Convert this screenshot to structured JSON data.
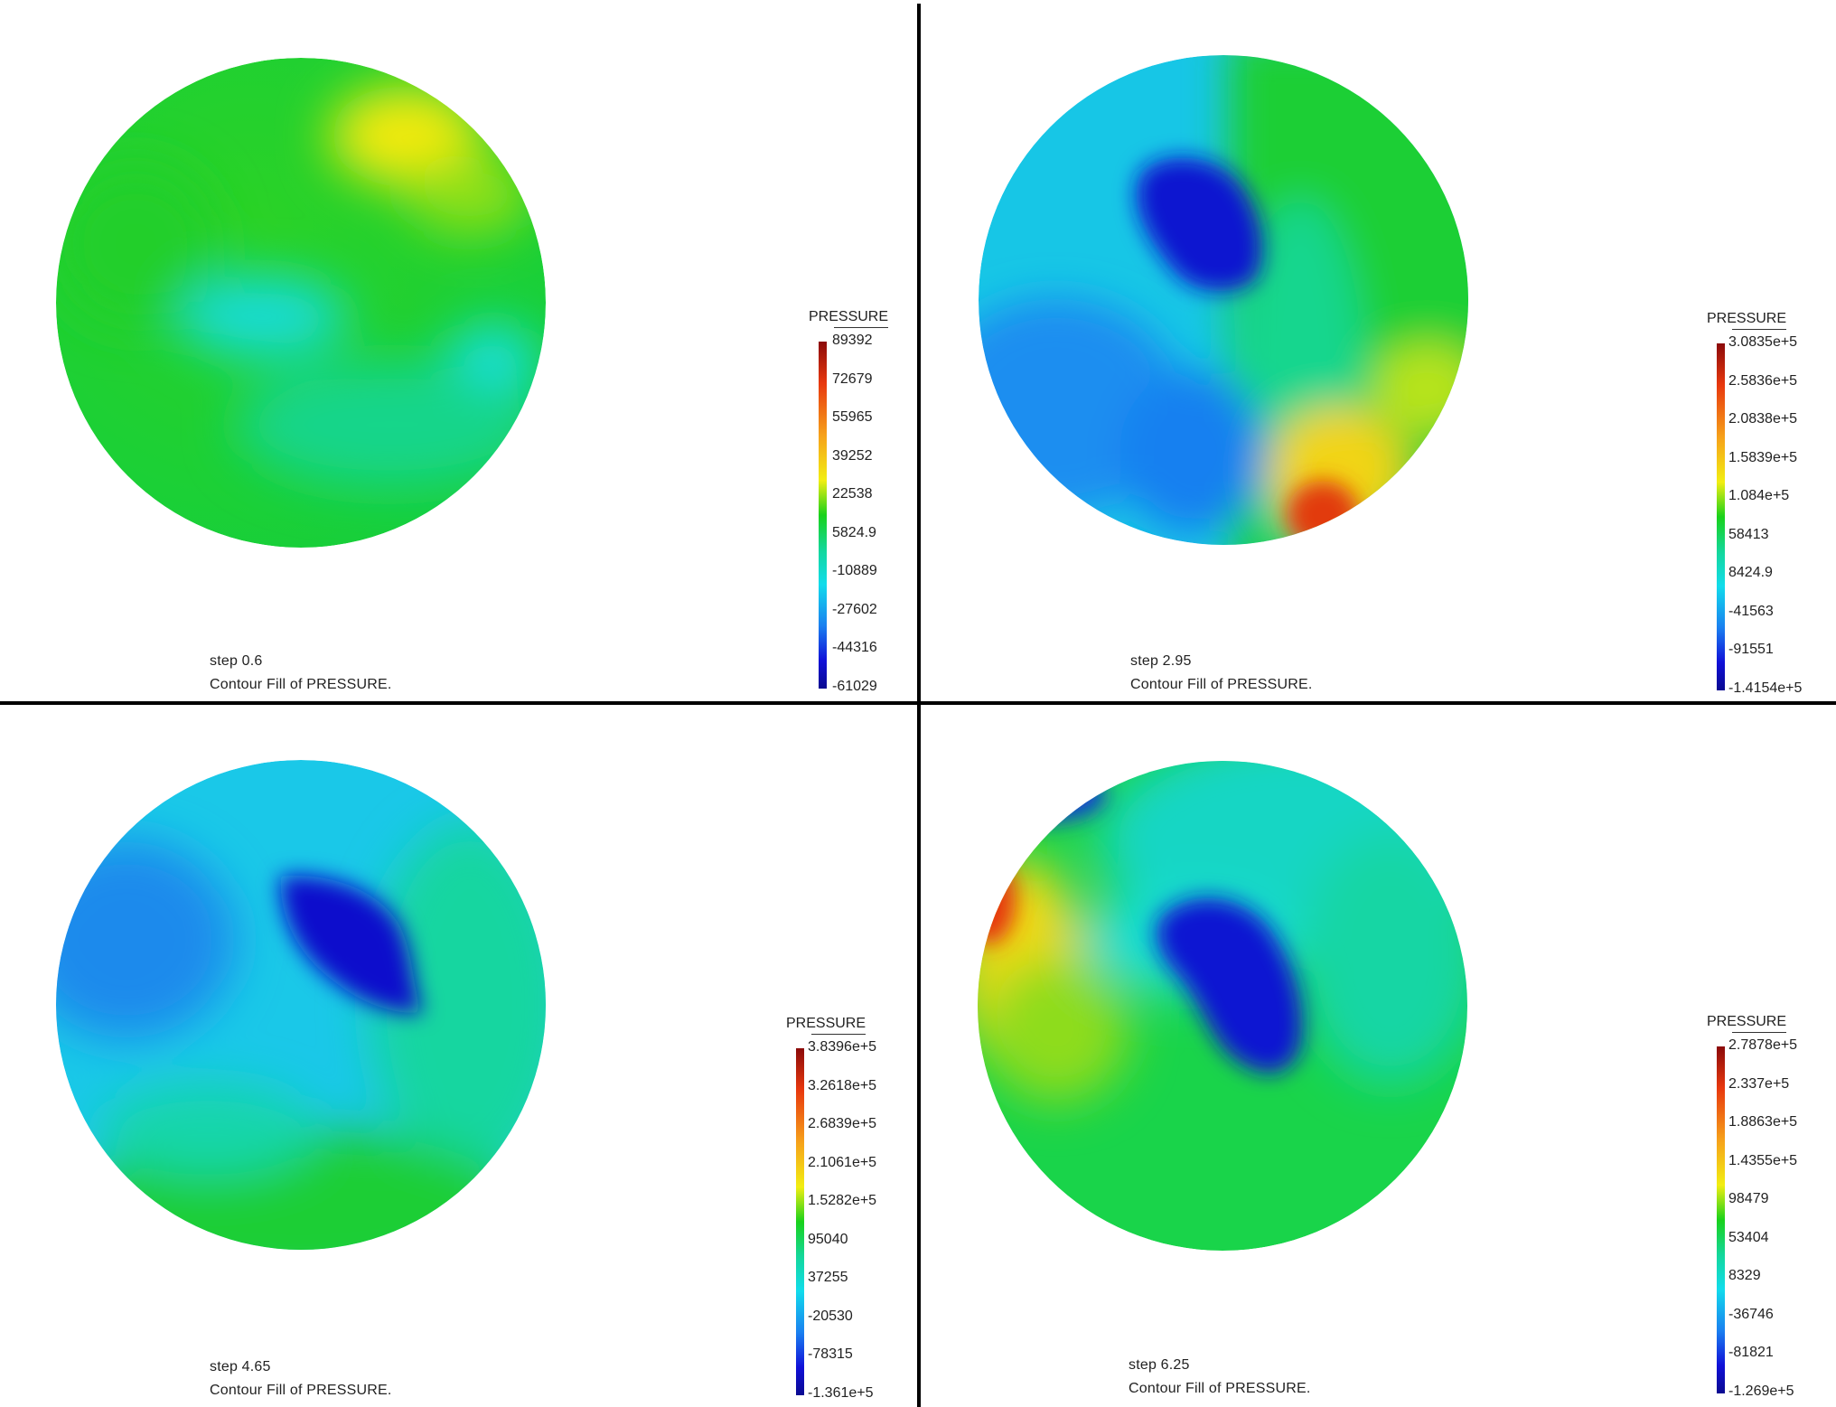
{
  "panels": [
    {
      "step": "step 0.6",
      "caption": "Contour Fill of PRESSURE.",
      "legend": {
        "title": "PRESSURE",
        "ticks": [
          "89392",
          "72679",
          "55965",
          "39252",
          "22538",
          "5824.9",
          "-10889",
          "-27602",
          "-44316",
          "-61029"
        ]
      },
      "field": {
        "base": "#1ecf24",
        "features": [
          {
            "name": "high-pressure-zone",
            "color": "#f4ea0e"
          },
          {
            "name": "low-pressure-zone",
            "color": "#16dcd6"
          }
        ]
      }
    },
    {
      "step": "step 2.95",
      "caption": "Contour Fill of PRESSURE.",
      "legend": {
        "title": "PRESSURE",
        "ticks": [
          "3.0835e+5",
          "2.5836e+5",
          "2.0838e+5",
          "1.5839e+5",
          "1.084e+5",
          "58413",
          "8424.9",
          "-41563",
          "-91551",
          "-1.4154e+5"
        ]
      },
      "field": {
        "base": "#17c6e6",
        "features": [
          {
            "name": "low-pressure-core",
            "color": "#0c12d0"
          },
          {
            "name": "high-pressure-zone",
            "color": "#e23a10"
          }
        ]
      }
    },
    {
      "step": "step 4.65",
      "caption": "Contour Fill of PRESSURE.",
      "legend": {
        "title": "PRESSURE",
        "ticks": [
          "3.8396e+5",
          "3.2618e+5",
          "2.6839e+5",
          "2.1061e+5",
          "1.5282e+5",
          "95040",
          "37255",
          "-20530",
          "-78315",
          "-1.361e+5"
        ]
      },
      "field": {
        "base": "#1ac8e8",
        "features": [
          {
            "name": "low-pressure-core",
            "color": "#0a10cc"
          }
        ]
      }
    },
    {
      "step": "step 6.25",
      "caption": "Contour Fill of PRESSURE.",
      "legend": {
        "title": "PRESSURE",
        "ticks": [
          "2.7878e+5",
          "2.337e+5",
          "1.8863e+5",
          "1.4355e+5",
          "98479",
          "53404",
          "8329",
          "-36746",
          "-81821",
          "-1.269e+5"
        ]
      },
      "field": {
        "base": "#19d44a",
        "features": [
          {
            "name": "low-pressure-core",
            "color": "#0c14d2"
          },
          {
            "name": "high-pressure-zone",
            "color": "#e8360e"
          }
        ]
      }
    }
  ]
}
